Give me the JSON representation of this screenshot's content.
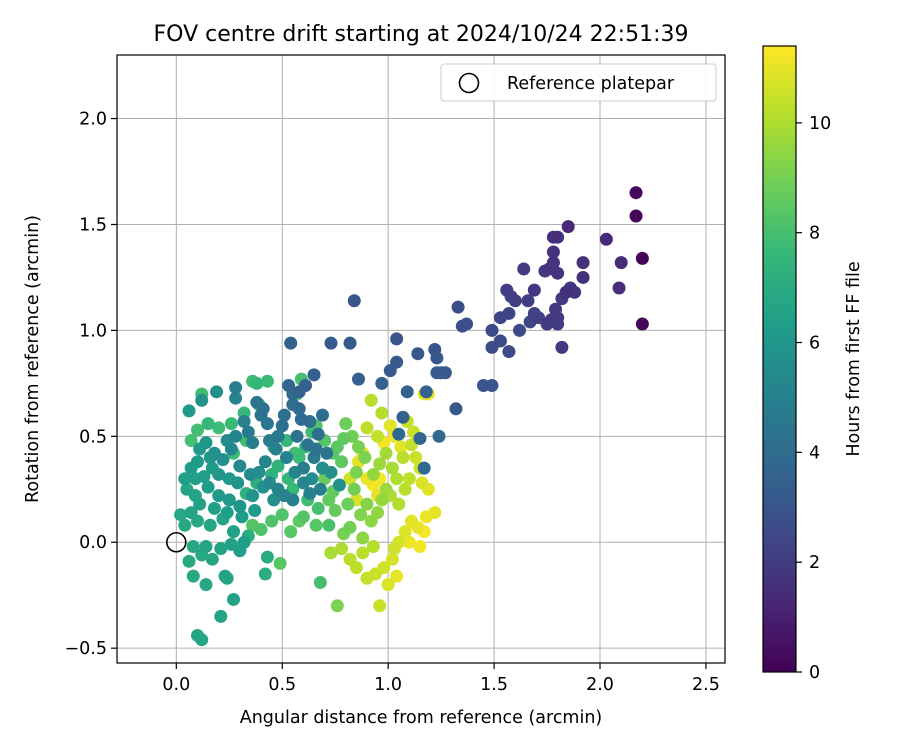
{
  "chart_data": {
    "type": "scatter",
    "title": "FOV centre drift starting at 2024/10/24 22:51:39",
    "xlabel": "Angular distance from reference (arcmin)",
    "ylabel": "Rotation from reference (arcmin)",
    "xlim": [
      -0.28,
      2.59
    ],
    "ylim": [
      -0.57,
      2.3
    ],
    "xticks": [
      0.0,
      0.5,
      1.0,
      1.5,
      2.0,
      2.5
    ],
    "xtick_labels": [
      "0.0",
      "0.5",
      "1.0",
      "1.5",
      "2.0",
      "2.5"
    ],
    "yticks": [
      -0.5,
      0.0,
      0.5,
      1.0,
      1.5,
      2.0
    ],
    "ytick_labels": [
      "−0.5",
      "0.0",
      "0.5",
      "1.0",
      "1.5",
      "2.0"
    ],
    "grid": true,
    "legend": {
      "placement": "top-right",
      "entries": [
        "Reference platepar"
      ]
    },
    "reference_point": {
      "x": 0.0,
      "y": 0.0,
      "label": "Reference platepar"
    },
    "colorbar": {
      "label": "Hours from first FF file",
      "colormap": "viridis",
      "range": [
        0,
        11.4
      ],
      "ticks": [
        0,
        2,
        4,
        6,
        8,
        10
      ],
      "tick_labels": [
        "0",
        "2",
        "4",
        "6",
        "8",
        "10"
      ]
    },
    "colors": {
      "viridis": [
        "#440154",
        "#482878",
        "#3e4a89",
        "#31688e",
        "#26828e",
        "#1f9e89",
        "#35b779",
        "#6ece58",
        "#b5de2b",
        "#fde725"
      ],
      "grid": "#b0b0b0",
      "axes": "#000000",
      "reference_marker": "#000000"
    },
    "points": [
      [
        2.17,
        1.65,
        0.2
      ],
      [
        2.17,
        1.54,
        0.15
      ],
      [
        2.2,
        1.34,
        0.1
      ],
      [
        2.2,
        1.03,
        0.2
      ],
      [
        2.03,
        1.43,
        1.3
      ],
      [
        2.1,
        1.32,
        1.4
      ],
      [
        2.09,
        1.2,
        1.5
      ],
      [
        1.92,
        1.32,
        1.6
      ],
      [
        1.92,
        1.25,
        1.6
      ],
      [
        1.85,
        1.49,
        1.3
      ],
      [
        1.78,
        1.44,
        1.5
      ],
      [
        1.8,
        1.44,
        1.6
      ],
      [
        1.78,
        1.37,
        1.6
      ],
      [
        1.78,
        1.32,
        1.7
      ],
      [
        1.74,
        1.28,
        1.8
      ],
      [
        1.76,
        1.29,
        1.7
      ],
      [
        1.8,
        1.27,
        1.7
      ],
      [
        1.84,
        1.18,
        1.6
      ],
      [
        1.86,
        1.2,
        1.8
      ],
      [
        1.88,
        1.18,
        1.7
      ],
      [
        1.82,
        1.15,
        1.9
      ],
      [
        1.79,
        1.1,
        1.9
      ],
      [
        1.8,
        1.06,
        2.0
      ],
      [
        1.75,
        1.03,
        2.0
      ],
      [
        1.77,
        1.05,
        1.9
      ],
      [
        1.8,
        1.03,
        2.0
      ],
      [
        1.69,
        1.19,
        1.8
      ],
      [
        1.64,
        1.29,
        1.9
      ],
      [
        1.6,
        1.14,
        2.1
      ],
      [
        1.56,
        1.19,
        2.0
      ],
      [
        1.58,
        1.16,
        2.2
      ],
      [
        1.66,
        1.14,
        2.1
      ],
      [
        1.69,
        1.08,
        2.2
      ],
      [
        1.71,
        1.06,
        2.2
      ],
      [
        1.57,
        1.08,
        2.3
      ],
      [
        1.62,
        1.0,
        2.5
      ],
      [
        1.67,
        1.04,
        2.4
      ],
      [
        1.53,
        1.06,
        2.3
      ],
      [
        1.49,
        1.0,
        2.6
      ],
      [
        1.53,
        0.95,
        2.5
      ],
      [
        1.49,
        0.92,
        2.7
      ],
      [
        1.57,
        0.9,
        2.6
      ],
      [
        1.82,
        0.92,
        1.9
      ],
      [
        1.33,
        1.11,
        2.7
      ],
      [
        1.35,
        1.02,
        2.8
      ],
      [
        1.37,
        1.03,
        2.8
      ],
      [
        1.45,
        0.74,
        3.0
      ],
      [
        1.49,
        0.74,
        3.0
      ],
      [
        1.32,
        0.63,
        3.1
      ],
      [
        1.22,
        0.91,
        3.0
      ],
      [
        1.23,
        0.87,
        3.2
      ],
      [
        1.25,
        0.8,
        3.2
      ],
      [
        1.27,
        0.8,
        3.2
      ],
      [
        1.23,
        0.8,
        3.3
      ],
      [
        1.14,
        0.89,
        3.1
      ],
      [
        1.04,
        0.96,
        3.0
      ],
      [
        1.04,
        0.85,
        3.2
      ],
      [
        1.01,
        0.81,
        3.2
      ],
      [
        0.84,
        1.14,
        3.0
      ],
      [
        0.82,
        0.94,
        3.2
      ],
      [
        0.73,
        0.94,
        3.2
      ],
      [
        0.86,
        0.77,
        3.4
      ],
      [
        0.97,
        0.75,
        3.5
      ],
      [
        1.09,
        0.71,
        3.5
      ],
      [
        1.18,
        0.71,
        3.6
      ],
      [
        1.24,
        0.5,
        3.8
      ],
      [
        1.17,
        0.35,
        3.8
      ],
      [
        1.15,
        0.49,
        3.7
      ],
      [
        1.07,
        0.59,
        3.6
      ],
      [
        1.05,
        0.51,
        3.8
      ],
      [
        0.65,
        0.79,
        3.4
      ],
      [
        0.54,
        0.94,
        3.5
      ],
      [
        0.61,
        0.74,
        3.5
      ],
      [
        0.58,
        0.71,
        3.6
      ],
      [
        0.53,
        0.74,
        3.7
      ],
      [
        0.55,
        0.7,
        3.8
      ],
      [
        0.58,
        0.63,
        3.9
      ],
      [
        0.55,
        0.65,
        4.0
      ],
      [
        0.59,
        0.58,
        3.9
      ],
      [
        0.63,
        0.57,
        4.1
      ],
      [
        0.69,
        0.6,
        4.0
      ],
      [
        0.67,
        0.51,
        4.2
      ],
      [
        0.62,
        0.46,
        4.3
      ],
      [
        0.66,
        0.44,
        4.3
      ],
      [
        0.71,
        0.42,
        4.4
      ],
      [
        0.51,
        0.6,
        4.1
      ],
      [
        0.5,
        0.55,
        4.2
      ],
      [
        0.57,
        0.5,
        4.3
      ],
      [
        0.43,
        0.56,
        4.5
      ],
      [
        0.41,
        0.63,
        4.3
      ],
      [
        0.4,
        0.6,
        4.4
      ],
      [
        0.38,
        0.66,
        4.5
      ],
      [
        0.34,
        0.52,
        4.7
      ],
      [
        0.36,
        0.47,
        4.8
      ],
      [
        0.28,
        0.73,
        4.8
      ],
      [
        0.28,
        0.68,
        5.0
      ],
      [
        0.32,
        0.57,
        5.0
      ],
      [
        0.19,
        0.71,
        5.6
      ],
      [
        0.12,
        0.67,
        5.8
      ],
      [
        0.06,
        0.62,
        6.2
      ],
      [
        0.26,
        0.44,
        5.3
      ],
      [
        0.3,
        0.36,
        5.4
      ],
      [
        0.35,
        0.32,
        5.5
      ],
      [
        0.42,
        0.38,
        5.3
      ],
      [
        0.47,
        0.44,
        5.1
      ],
      [
        0.52,
        0.4,
        5.0
      ],
      [
        0.56,
        0.33,
        5.2
      ],
      [
        0.6,
        0.28,
        5.3
      ],
      [
        0.64,
        0.3,
        5.5
      ],
      [
        0.69,
        0.35,
        5.6
      ],
      [
        0.73,
        0.33,
        5.7
      ],
      [
        0.77,
        0.27,
        5.7
      ],
      [
        0.22,
        0.39,
        5.6
      ],
      [
        0.18,
        0.42,
        5.8
      ],
      [
        0.14,
        0.47,
        6.0
      ],
      [
        0.11,
        0.44,
        6.2
      ],
      [
        0.07,
        0.35,
        6.3
      ],
      [
        0.04,
        0.3,
        6.4
      ],
      [
        0.05,
        0.25,
        6.6
      ],
      [
        0.09,
        0.3,
        6.5
      ],
      [
        0.15,
        0.26,
        6.3
      ],
      [
        0.2,
        0.22,
        6.2
      ],
      [
        0.25,
        0.2,
        6.1
      ],
      [
        0.3,
        0.17,
        6.0
      ],
      [
        0.36,
        0.22,
        5.9
      ],
      [
        0.41,
        0.26,
        5.8
      ],
      [
        0.46,
        0.2,
        5.7
      ],
      [
        0.11,
        0.18,
        6.5
      ],
      [
        0.07,
        0.14,
        6.7
      ],
      [
        0.02,
        0.13,
        6.8
      ],
      [
        0.04,
        0.08,
        6.9
      ],
      [
        0.1,
        0.1,
        6.8
      ],
      [
        0.16,
        0.08,
        6.7
      ],
      [
        0.22,
        0.11,
        6.6
      ],
      [
        0.27,
        0.05,
        6.5
      ],
      [
        0.32,
        0.0,
        6.4
      ],
      [
        0.08,
        -0.02,
        6.8
      ],
      [
        0.12,
        -0.06,
        6.8
      ],
      [
        0.06,
        -0.09,
        6.9
      ],
      [
        0.14,
        -0.02,
        6.6
      ],
      [
        0.17,
        -0.08,
        6.7
      ],
      [
        0.21,
        -0.03,
        6.6
      ],
      [
        0.26,
        -0.01,
        6.5
      ],
      [
        0.3,
        -0.04,
        6.4
      ],
      [
        0.08,
        -0.16,
        6.9
      ],
      [
        0.14,
        -0.2,
        6.8
      ],
      [
        0.24,
        -0.17,
        6.6
      ],
      [
        0.23,
        -0.16,
        6.6
      ],
      [
        0.27,
        -0.27,
        6.5
      ],
      [
        0.21,
        -0.35,
        6.6
      ],
      [
        0.1,
        -0.44,
        6.7
      ],
      [
        0.12,
        -0.46,
        6.7
      ],
      [
        0.43,
        -0.07,
        7.0
      ],
      [
        0.42,
        -0.15,
        7.1
      ],
      [
        0.34,
        0.03,
        7.1
      ],
      [
        0.33,
        0.23,
        7.3
      ],
      [
        0.38,
        0.28,
        7.2
      ],
      [
        0.45,
        0.32,
        7.3
      ],
      [
        0.48,
        0.36,
        7.4
      ],
      [
        0.38,
        0.75,
        7.6
      ],
      [
        0.43,
        0.76,
        7.7
      ],
      [
        0.36,
        0.76,
        7.8
      ],
      [
        0.39,
        0.65,
        7.7
      ],
      [
        0.32,
        0.61,
        7.6
      ],
      [
        0.26,
        0.56,
        7.7
      ],
      [
        0.2,
        0.54,
        7.8
      ],
      [
        0.15,
        0.56,
        7.6
      ],
      [
        0.1,
        0.53,
        7.9
      ],
      [
        0.07,
        0.48,
        8.0
      ],
      [
        0.12,
        0.7,
        7.9
      ],
      [
        0.33,
        0.48,
        7.9
      ],
      [
        0.27,
        0.42,
        7.8
      ],
      [
        0.53,
        0.3,
        7.6
      ],
      [
        0.55,
        0.25,
        7.7
      ],
      [
        0.58,
        0.4,
        7.8
      ],
      [
        0.61,
        0.45,
        7.7
      ],
      [
        0.64,
        0.52,
        7.8
      ],
      [
        0.59,
        0.77,
        8.0
      ],
      [
        0.57,
        0.7,
        8.1
      ],
      [
        0.62,
        0.2,
        7.9
      ],
      [
        0.67,
        0.16,
        8.0
      ],
      [
        0.72,
        0.08,
        8.1
      ],
      [
        0.68,
        -0.19,
        8.0
      ],
      [
        0.5,
        0.13,
        8.2
      ],
      [
        0.45,
        0.1,
        8.2
      ],
      [
        0.4,
        0.06,
        8.2
      ],
      [
        0.36,
        0.08,
        8.3
      ],
      [
        0.49,
        -0.1,
        8.4
      ],
      [
        0.54,
        0.05,
        8.4
      ],
      [
        0.58,
        0.1,
        8.5
      ],
      [
        0.66,
        0.55,
        8.2
      ],
      [
        0.7,
        0.48,
        8.3
      ],
      [
        0.74,
        0.42,
        8.4
      ],
      [
        0.78,
        0.38,
        8.5
      ],
      [
        0.76,
        0.45,
        8.5
      ],
      [
        0.79,
        0.49,
        8.6
      ],
      [
        0.74,
        0.24,
        8.6
      ],
      [
        0.7,
        0.3,
        8.7
      ],
      [
        0.72,
        0.2,
        8.6
      ],
      [
        0.75,
        0.15,
        8.7
      ],
      [
        0.81,
        0.18,
        8.8
      ],
      [
        0.84,
        0.25,
        8.9
      ],
      [
        0.8,
        0.56,
        8.8
      ],
      [
        0.83,
        0.5,
        8.9
      ],
      [
        0.86,
        0.45,
        9.0
      ],
      [
        0.89,
        0.4,
        9.1
      ],
      [
        0.85,
        0.33,
        9.1
      ],
      [
        0.82,
        0.07,
        8.9
      ],
      [
        0.79,
        0.04,
        9.0
      ],
      [
        0.76,
        -0.3,
        9.1
      ],
      [
        0.87,
        0.13,
        9.2
      ],
      [
        0.9,
        0.18,
        9.3
      ],
      [
        0.92,
        0.1,
        9.4
      ],
      [
        0.88,
        0.02,
        9.4
      ],
      [
        0.95,
        0.14,
        9.5
      ],
      [
        0.97,
        0.2,
        9.6
      ],
      [
        0.99,
        0.25,
        9.7
      ],
      [
        0.93,
        0.32,
        9.6
      ],
      [
        0.96,
        0.37,
        9.7
      ],
      [
        0.99,
        0.42,
        9.8
      ],
      [
        1.02,
        0.35,
        9.9
      ],
      [
        1.04,
        0.3,
        10.0
      ],
      [
        1.01,
        0.22,
        10.0
      ],
      [
        1.05,
        0.18,
        10.1
      ],
      [
        1.08,
        0.25,
        10.2
      ],
      [
        1.1,
        0.3,
        10.3
      ],
      [
        1.07,
        0.4,
        10.2
      ],
      [
        1.11,
        0.46,
        10.4
      ],
      [
        1.13,
        0.4,
        10.5
      ],
      [
        1.15,
        0.35,
        10.6
      ],
      [
        1.12,
        0.52,
        10.5
      ],
      [
        1.09,
        0.57,
        10.4
      ],
      [
        0.97,
        0.61,
        10.1
      ],
      [
        0.92,
        0.67,
        10.2
      ],
      [
        0.9,
        0.54,
        10.3
      ],
      [
        0.95,
        0.5,
        10.4
      ],
      [
        1.17,
        0.7,
        10.9
      ],
      [
        1.19,
        0.7,
        11.1
      ],
      [
        1.16,
        0.28,
        10.8
      ],
      [
        1.19,
        0.25,
        10.9
      ],
      [
        1.22,
        0.14,
        11.0
      ],
      [
        1.18,
        0.12,
        11.1
      ],
      [
        1.14,
        0.07,
        11.0
      ],
      [
        1.11,
        0.1,
        10.9
      ],
      [
        1.08,
        0.05,
        10.8
      ],
      [
        1.05,
        0.0,
        10.7
      ],
      [
        1.03,
        -0.03,
        10.6
      ],
      [
        1.02,
        -0.08,
        10.7
      ],
      [
        0.98,
        -0.12,
        10.6
      ],
      [
        0.94,
        -0.15,
        10.5
      ],
      [
        0.9,
        -0.17,
        10.4
      ],
      [
        0.85,
        -0.12,
        10.3
      ],
      [
        0.82,
        -0.08,
        10.2
      ],
      [
        0.88,
        -0.05,
        10.2
      ],
      [
        0.93,
        -0.02,
        10.1
      ],
      [
        0.78,
        -0.03,
        10.0
      ],
      [
        0.73,
        -0.05,
        9.9
      ],
      [
        0.96,
        -0.3,
        10.5
      ],
      [
        1.0,
        -0.2,
        10.8
      ],
      [
        1.04,
        -0.16,
        11.0
      ],
      [
        1.1,
        0.0,
        11.1
      ],
      [
        1.15,
        -0.02,
        11.2
      ],
      [
        1.17,
        0.05,
        11.3
      ],
      [
        1.06,
        0.45,
        11.0
      ],
      [
        1.03,
        0.5,
        11.1
      ],
      [
        1.01,
        0.55,
        10.9
      ],
      [
        0.98,
        0.47,
        11.2
      ],
      [
        0.96,
        0.3,
        11.3
      ],
      [
        0.93,
        0.27,
        11.2
      ],
      [
        0.9,
        0.3,
        11.1
      ],
      [
        0.95,
        0.22,
        11.0
      ],
      [
        0.85,
        0.2,
        10.7
      ],
      [
        0.82,
        0.3,
        10.6
      ],
      [
        0.86,
        0.38,
        10.9
      ],
      [
        0.88,
        0.42,
        11.0
      ],
      [
        0.2,
        0.32,
        6.0
      ],
      [
        0.25,
        0.3,
        6.1
      ],
      [
        0.29,
        0.28,
        5.9
      ],
      [
        0.17,
        0.35,
        6.3
      ],
      [
        0.13,
        0.31,
        6.4
      ],
      [
        0.09,
        0.22,
        6.6
      ],
      [
        0.18,
        0.16,
        6.5
      ],
      [
        0.24,
        0.14,
        6.4
      ],
      [
        0.31,
        0.12,
        6.3
      ],
      [
        0.37,
        0.15,
        6.2
      ],
      [
        0.39,
        0.33,
        5.6
      ],
      [
        0.44,
        0.28,
        5.4
      ],
      [
        0.48,
        0.25,
        5.2
      ],
      [
        0.51,
        0.22,
        5.0
      ],
      [
        0.55,
        0.2,
        4.9
      ],
      [
        0.6,
        0.35,
        4.8
      ],
      [
        0.65,
        0.4,
        4.7
      ],
      [
        0.68,
        0.25,
        4.9
      ],
      [
        0.63,
        0.23,
        5.1
      ],
      [
        0.48,
        0.5,
        4.6
      ],
      [
        0.44,
        0.48,
        4.8
      ],
      [
        0.28,
        0.5,
        5.2
      ],
      [
        0.24,
        0.48,
        5.5
      ],
      [
        0.16,
        0.4,
        6.0
      ],
      [
        0.1,
        0.38,
        6.2
      ],
      [
        0.46,
        0.45,
        7.5
      ],
      [
        0.52,
        0.48,
        7.6
      ],
      [
        0.56,
        0.42,
        7.9
      ],
      [
        0.6,
        0.12,
        8.3
      ],
      [
        0.66,
        0.08,
        8.4
      ]
    ]
  }
}
